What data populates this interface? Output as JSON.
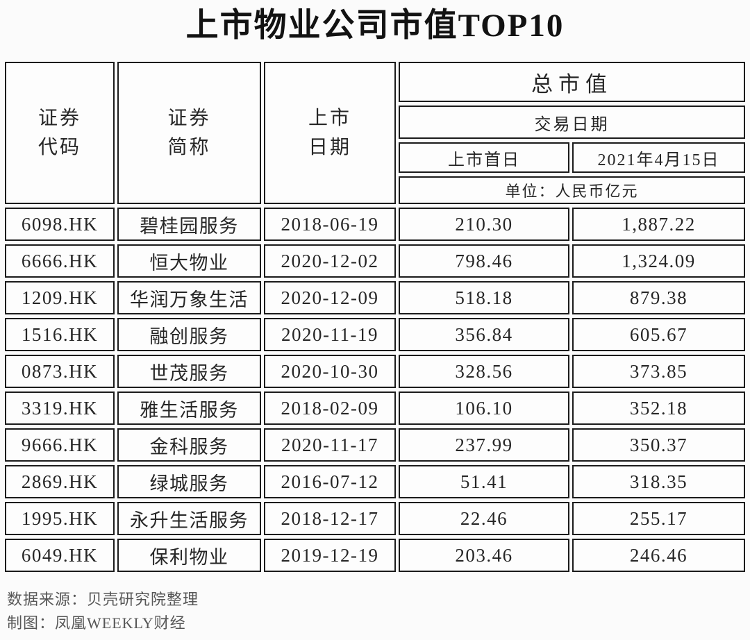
{
  "page": {
    "title": "上市物业公司市值TOP10"
  },
  "table": {
    "header": {
      "code": "证券\n代码",
      "name": "证券\n简称",
      "list_date": "上市\n日期",
      "total_cap": "总市值",
      "trade_date": "交易日期",
      "first_day": "上市首日",
      "as_of_date": "2021年4月15日",
      "unit": "单位：人民币亿元"
    },
    "rows": [
      {
        "code": "6098.HK",
        "name": "碧桂园服务",
        "list_date": "2018-06-19",
        "first_day_cap": "210.30",
        "cap_20210415": "1,887.22"
      },
      {
        "code": "6666.HK",
        "name": "恒大物业",
        "list_date": "2020-12-02",
        "first_day_cap": "798.46",
        "cap_20210415": "1,324.09"
      },
      {
        "code": "1209.HK",
        "name": "华润万象生活",
        "list_date": "2020-12-09",
        "first_day_cap": "518.18",
        "cap_20210415": "879.38"
      },
      {
        "code": "1516.HK",
        "name": "融创服务",
        "list_date": "2020-11-19",
        "first_day_cap": "356.84",
        "cap_20210415": "605.67"
      },
      {
        "code": "0873.HK",
        "name": "世茂服务",
        "list_date": "2020-10-30",
        "first_day_cap": "328.56",
        "cap_20210415": "373.85"
      },
      {
        "code": "3319.HK",
        "name": "雅生活服务",
        "list_date": "2018-02-09",
        "first_day_cap": "106.10",
        "cap_20210415": "352.18"
      },
      {
        "code": "9666.HK",
        "name": "金科服务",
        "list_date": "2020-11-17",
        "first_day_cap": "237.99",
        "cap_20210415": "350.37"
      },
      {
        "code": "2869.HK",
        "name": "绿城服务",
        "list_date": "2016-07-12",
        "first_day_cap": "51.41",
        "cap_20210415": "318.35"
      },
      {
        "code": "1995.HK",
        "name": "永升生活服务",
        "list_date": "2018-12-17",
        "first_day_cap": "22.46",
        "cap_20210415": "255.17"
      },
      {
        "code": "6049.HK",
        "name": "保利物业",
        "list_date": "2019-12-19",
        "first_day_cap": "203.46",
        "cap_20210415": "246.46"
      }
    ]
  },
  "footer": {
    "source": "数据来源：贝壳研究院整理",
    "credit": "制图：凤凰WEEKLY财经"
  },
  "colors": {
    "border": "#1b1b1b",
    "text": "#262626",
    "footer_text": "#565656",
    "cell_bg": "#fdfdfd",
    "page_bg": "#fbfbfb"
  },
  "chart_data": {
    "type": "table",
    "title": "上市物业公司市值TOP10",
    "unit": "人民币亿元",
    "columns": [
      "证券代码",
      "证券简称",
      "上市日期",
      "总市值(上市首日)",
      "总市值(2021年4月15日)"
    ],
    "rows": [
      [
        "6098.HK",
        "碧桂园服务",
        "2018-06-19",
        210.3,
        1887.22
      ],
      [
        "6666.HK",
        "恒大物业",
        "2020-12-02",
        798.46,
        1324.09
      ],
      [
        "1209.HK",
        "华润万象生活",
        "2020-12-09",
        518.18,
        879.38
      ],
      [
        "1516.HK",
        "融创服务",
        "2020-11-19",
        356.84,
        605.67
      ],
      [
        "0873.HK",
        "世茂服务",
        "2020-10-30",
        328.56,
        373.85
      ],
      [
        "3319.HK",
        "雅生活服务",
        "2018-02-09",
        106.1,
        352.18
      ],
      [
        "9666.HK",
        "金科服务",
        "2020-11-17",
        237.99,
        350.37
      ],
      [
        "2869.HK",
        "绿城服务",
        "2016-07-12",
        51.41,
        318.35
      ],
      [
        "1995.HK",
        "永升生活服务",
        "2018-12-17",
        22.46,
        255.17
      ],
      [
        "6049.HK",
        "保利物业",
        "2019-12-19",
        203.46,
        246.46
      ]
    ],
    "source": "贝壳研究院整理",
    "credit": "凤凰WEEKLY财经"
  }
}
